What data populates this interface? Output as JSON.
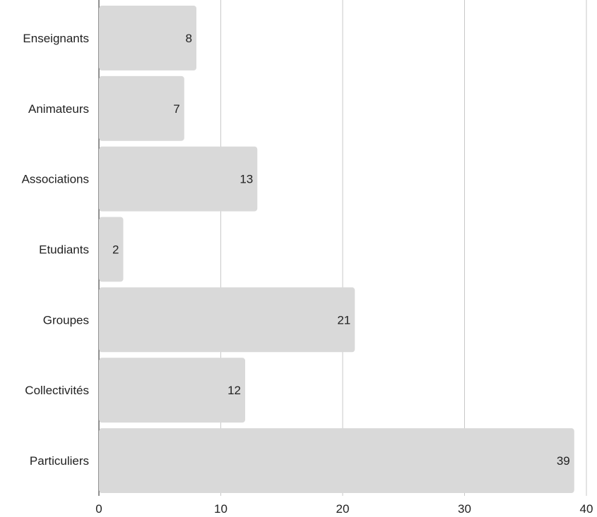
{
  "chart_data": {
    "type": "bar",
    "orientation": "horizontal",
    "categories": [
      "Enseignants",
      "Animateurs",
      "Associations",
      "Etudiants",
      "Groupes",
      "Collectivités",
      "Particuliers"
    ],
    "values": [
      8,
      7,
      13,
      2,
      21,
      12,
      39
    ],
    "xlim": [
      0,
      40
    ],
    "x_ticks": [
      "0",
      "10",
      "20",
      "30",
      "40"
    ],
    "grid": true,
    "bar_color": "#d9d9d9",
    "title": "",
    "xlabel": "",
    "ylabel": ""
  }
}
